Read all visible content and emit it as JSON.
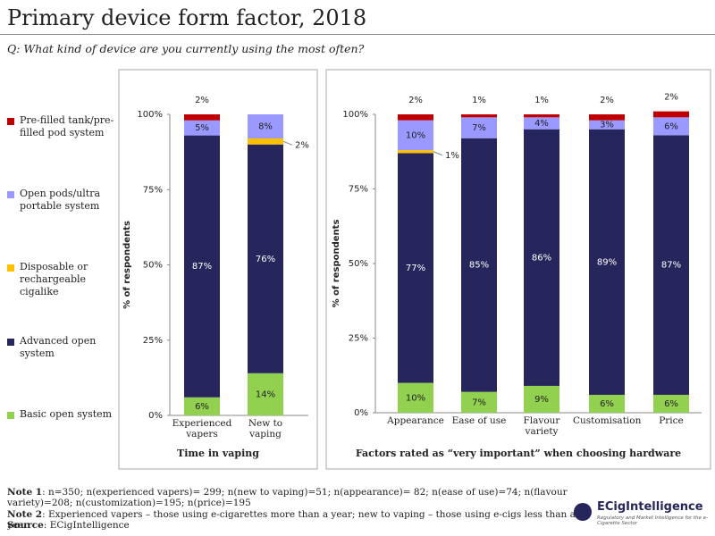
{
  "title": "Primary device form factor, 2018",
  "subtitle": "Q: What kind of device are you currently using the most often?",
  "chart_data": [
    {
      "type": "stacked_bar",
      "y_label": "% of respondents",
      "x_label": "Time in vaping",
      "categories": [
        "Experienced vapers",
        "New to vaping"
      ],
      "ylim": [
        0,
        100
      ],
      "yticks": [
        {
          "value": 0,
          "label": "0%"
        },
        {
          "value": 25,
          "label": "25%"
        },
        {
          "value": 50,
          "label": "50%"
        },
        {
          "value": 75,
          "label": "75%"
        },
        {
          "value": 100,
          "label": "100%"
        }
      ],
      "series": [
        {
          "name": "Basic open system",
          "color": "#92d050",
          "values": [
            6,
            14
          ],
          "value_labels": [
            "6%",
            "14%"
          ]
        },
        {
          "name": "Advanced open system",
          "color": "#26265c",
          "values": [
            87,
            76
          ],
          "value_labels": [
            "87%",
            "76%"
          ]
        },
        {
          "name": "Disposable or rechargeable cigalike",
          "color": "#ffc000",
          "values": [
            0,
            2
          ],
          "value_labels": [
            null,
            "2%"
          ]
        },
        {
          "name": "Open pods/ultra portable system",
          "color": "#9999ff",
          "values": [
            5,
            8
          ],
          "value_labels": [
            "5%",
            "8%"
          ]
        },
        {
          "name": "Pre-filled tank/pre-filled pod system",
          "color": "#c00000",
          "values": [
            2,
            0
          ],
          "value_labels": [
            "2%",
            null
          ]
        }
      ]
    },
    {
      "type": "stacked_bar",
      "y_label": "% of respondents",
      "x_label": "Factors rated as “very important” when choosing hardware",
      "categories": [
        "Appearance",
        "Ease of use",
        "Flavour variety",
        "Customisation",
        "Price"
      ],
      "ylim": [
        0,
        100
      ],
      "yticks": [
        {
          "value": 0,
          "label": "0%"
        },
        {
          "value": 25,
          "label": "25%"
        },
        {
          "value": 50,
          "label": "50%"
        },
        {
          "value": 75,
          "label": "75%"
        },
        {
          "value": 100,
          "label": "100%"
        }
      ],
      "series": [
        {
          "values": [
            10,
            7,
            9,
            6,
            6
          ],
          "value_labels": [
            "10%",
            "7%",
            "9%",
            "6%",
            "6%"
          ]
        },
        {
          "values": [
            77,
            85,
            86,
            89,
            87
          ],
          "value_labels": [
            "77%",
            "85%",
            "86%",
            "89%",
            "87%"
          ]
        },
        {
          "values": [
            1,
            0,
            0,
            0,
            0
          ],
          "value_labels": [
            "1%",
            null,
            null,
            null,
            null
          ]
        },
        {
          "values": [
            10,
            7,
            4,
            3,
            6
          ],
          "value_labels": [
            "10%",
            "7%",
            "4%",
            "3%",
            "6%"
          ]
        },
        {
          "values": [
            2,
            1,
            1,
            2,
            2
          ],
          "value_labels": [
            "2%",
            "1%",
            "1%",
            "2%",
            "2%"
          ]
        }
      ]
    }
  ],
  "notes": [
    {
      "label": "Note 1",
      "text": ": n=350; n(experienced vapers)= 299; n(new to vaping)=51; n(appearance)= 82; n(ease of use)=74; n(flavour variety)=208; n(customization)=195; n(price)=195"
    },
    {
      "label": "Note 2",
      "text": ": Experienced vapers – those using e-cigarettes more than a year; new to vaping – those using e-cigs less than a year"
    },
    {
      "label": "Source",
      "text": ": ECigIntelligence"
    }
  ],
  "logo": {
    "name": "ECigIntelligence",
    "tagline": "Regulatory and Market Intelligence for the e-Cigarette Sector"
  }
}
